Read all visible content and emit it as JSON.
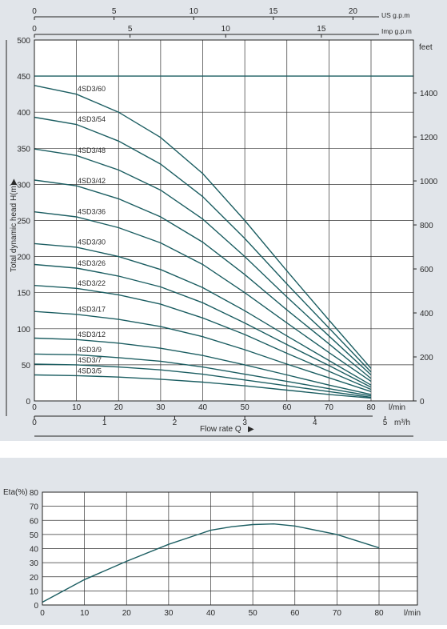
{
  "chart_data": [
    {
      "type": "line",
      "title": "",
      "xlabel": "Flow  rate Q",
      "ylabel": "Total dynamic head H(m)",
      "x_unit": "l/min",
      "y_unit": "",
      "xlim": [
        0,
        80
      ],
      "ylim": [
        0,
        500
      ],
      "grid": true,
      "x_ticks": [
        0,
        10,
        20,
        30,
        40,
        50,
        60,
        70,
        80
      ],
      "y_ticks": [
        0,
        50,
        100,
        150,
        200,
        250,
        300,
        350,
        400,
        450,
        500
      ],
      "secondary_y": {
        "label": "feet",
        "ticks": [
          0,
          200,
          400,
          600,
          800,
          1000,
          1200,
          1400
        ]
      },
      "secondary_x_bottom": {
        "unit": "m³/h",
        "ticks": [
          0,
          1,
          2,
          3,
          4,
          5
        ]
      },
      "top_axes": [
        {
          "label": "US g.p.m",
          "ticks": [
            0,
            5,
            10,
            15,
            20
          ]
        },
        {
          "label": "Imp g.p.m",
          "ticks": [
            0,
            5,
            10,
            15
          ]
        }
      ],
      "x": [
        0,
        10,
        20,
        30,
        40,
        50,
        60,
        70,
        80
      ],
      "series": [
        {
          "name": "4SD3/60",
          "values": [
            437,
            425,
            400,
            365,
            315,
            250,
            180,
            112,
            45
          ]
        },
        {
          "name": "4SD3/54",
          "values": [
            393,
            383,
            360,
            328,
            283,
            225,
            162,
            101,
            40
          ]
        },
        {
          "name": "4SD3/48",
          "values": [
            349,
            340,
            320,
            292,
            252,
            200,
            144,
            90,
            36
          ]
        },
        {
          "name": "4SD3/42",
          "values": [
            306,
            298,
            280,
            255,
            220,
            175,
            126,
            79,
            31
          ]
        },
        {
          "name": "4SD3/36",
          "values": [
            262,
            255,
            240,
            219,
            189,
            150,
            108,
            67,
            27
          ]
        },
        {
          "name": "4SD3/30",
          "values": [
            218,
            213,
            200,
            182,
            157,
            125,
            90,
            56,
            22
          ]
        },
        {
          "name": "4SD3/26",
          "values": [
            189,
            184,
            173,
            158,
            136,
            108,
            78,
            49,
            19
          ]
        },
        {
          "name": "4SD3/22",
          "values": [
            160,
            156,
            147,
            134,
            115,
            92,
            66,
            41,
            16
          ]
        },
        {
          "name": "4SD3/17",
          "values": [
            124,
            120,
            113,
            103,
            89,
            71,
            51,
            32,
            13
          ]
        },
        {
          "name": "4SD3/12",
          "values": [
            87,
            85,
            80,
            73,
            63,
            50,
            36,
            22,
            9
          ]
        },
        {
          "name": "4SD3/9",
          "values": [
            65,
            64,
            60,
            55,
            47,
            37,
            27,
            17,
            7
          ]
        },
        {
          "name": "4SD3/7",
          "values": [
            51,
            50,
            47,
            43,
            37,
            29,
            21,
            13,
            5
          ]
        },
        {
          "name": "4SD3/5",
          "values": [
            36,
            35,
            33,
            30,
            26,
            21,
            15,
            9,
            4
          ]
        }
      ],
      "max_line": 450,
      "series_labels": [
        {
          "text": "4SD3/60"
        },
        {
          "text": "4SD3/54"
        },
        {
          "text": "4SD3/48"
        },
        {
          "text": "4SD3/42"
        },
        {
          "text": "4SD3/36"
        },
        {
          "text": "4SD3/30"
        },
        {
          "text": "4SD3/26"
        },
        {
          "text": "4SD3/22"
        },
        {
          "text": "4SD3/17"
        },
        {
          "text": "4SD3/12"
        },
        {
          "text": "4SD3/9"
        },
        {
          "text": "4SD3/7"
        },
        {
          "text": "4SD3/5"
        }
      ]
    },
    {
      "type": "line",
      "title": "",
      "xlabel": "",
      "ylabel": "Eta(%)",
      "x_unit": "l/min",
      "xlim": [
        0,
        80
      ],
      "ylim": [
        0,
        80
      ],
      "grid": true,
      "x_ticks": [
        0,
        10,
        20,
        30,
        40,
        50,
        60,
        70,
        80
      ],
      "y_ticks": [
        0,
        10,
        20,
        30,
        40,
        50,
        60,
        70,
        80
      ],
      "x": [
        0,
        10,
        20,
        30,
        40,
        45,
        50,
        55,
        60,
        70,
        80
      ],
      "series": [
        {
          "values": [
            2,
            18,
            31,
            43,
            53,
            55.5,
            57,
            57.5,
            56,
            50,
            40.5
          ]
        }
      ]
    }
  ],
  "colors": {
    "curve": "#1c5e62",
    "grid": "#333333",
    "panel": "#e1e5ea",
    "frame": "#222222"
  }
}
